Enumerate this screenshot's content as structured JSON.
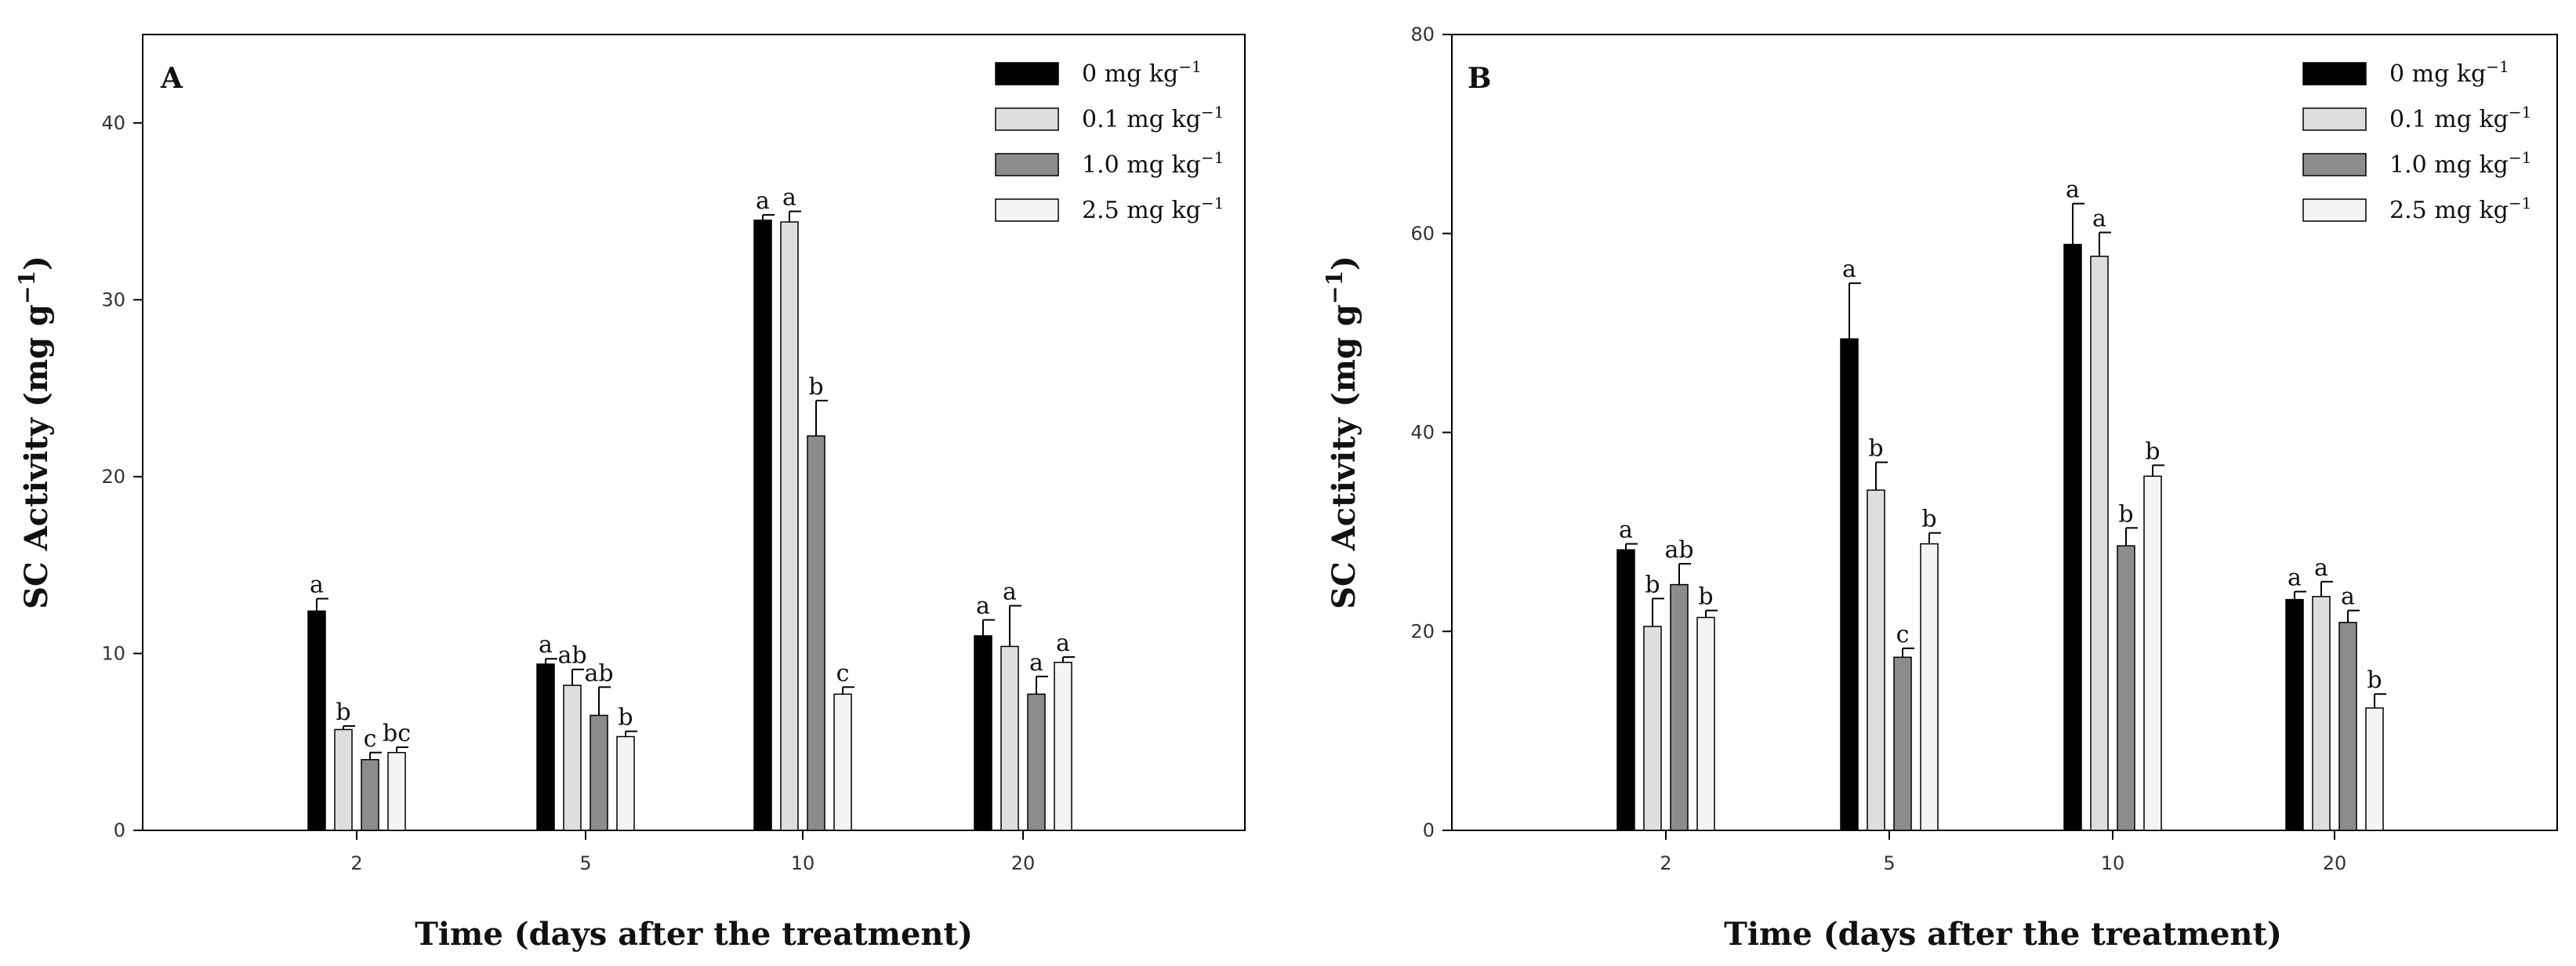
{
  "chart_data": [
    {
      "type": "bar",
      "panel": "A",
      "categories": [
        "2",
        "5",
        "10",
        "20"
      ],
      "series": [
        {
          "name": "0",
          "values": [
            12.4,
            9.4,
            34.5,
            11.0
          ],
          "errors": [
            0.7,
            0.3,
            0.3,
            0.9
          ],
          "letters": [
            "a",
            "a",
            "a",
            "a"
          ],
          "color": "#000000"
        },
        {
          "name": "0.1",
          "values": [
            5.7,
            8.2,
            34.4,
            10.4
          ],
          "errors": [
            0.2,
            0.9,
            0.6,
            2.3
          ],
          "letters": [
            "b",
            "ab",
            "a",
            "a"
          ],
          "color": "#dedede"
        },
        {
          "name": "1.0",
          "values": [
            4.0,
            6.5,
            22.3,
            7.7
          ],
          "errors": [
            0.4,
            1.6,
            2.0,
            1.0
          ],
          "letters": [
            "c",
            "ab",
            "b",
            "a"
          ],
          "color": "#8c8c8c"
        },
        {
          "name": "2.5",
          "values": [
            4.4,
            5.3,
            7.7,
            9.5
          ],
          "errors": [
            0.3,
            0.3,
            0.4,
            0.3
          ],
          "letters": [
            "bc",
            "b",
            "c",
            "a"
          ],
          "color": "#f4f4f4"
        }
      ],
      "ylim": [
        0,
        45
      ],
      "yticks": [
        0,
        10,
        20,
        30,
        40
      ],
      "xlabel": "Time (days after the treatment)",
      "ylabel": "SC Activity (mg g",
      "ylabel_sup": "−1",
      "ylabel_end": ")",
      "legend_unit": "mg kg",
      "legend_sup": "−1",
      "legend_position": "top-right"
    },
    {
      "type": "bar",
      "panel": "B",
      "categories": [
        "2",
        "5",
        "10",
        "20"
      ],
      "series": [
        {
          "name": "0",
          "values": [
            28.2,
            49.4,
            58.9,
            23.2
          ],
          "errors": [
            0.6,
            5.6,
            4.1,
            0.8
          ],
          "letters": [
            "a",
            "a",
            "a",
            "a"
          ],
          "color": "#000000"
        },
        {
          "name": "0.1",
          "values": [
            20.5,
            34.2,
            57.7,
            23.5
          ],
          "errors": [
            2.8,
            2.8,
            2.4,
            1.5
          ],
          "letters": [
            "b",
            "b",
            "a",
            "a"
          ],
          "color": "#dedede"
        },
        {
          "name": "1.0",
          "values": [
            24.7,
            17.4,
            28.6,
            20.9
          ],
          "errors": [
            2.1,
            0.9,
            1.8,
            1.2
          ],
          "letters": [
            "ab",
            "c",
            "b",
            "a"
          ],
          "color": "#8c8c8c"
        },
        {
          "name": "2.5",
          "values": [
            21.4,
            28.8,
            35.6,
            12.3
          ],
          "errors": [
            0.7,
            1.1,
            1.1,
            1.4
          ],
          "letters": [
            "b",
            "b",
            "b",
            "b"
          ],
          "color": "#f4f4f4"
        }
      ],
      "ylim": [
        0,
        80
      ],
      "yticks": [
        0,
        20,
        40,
        60,
        80
      ],
      "xlabel": "Time (days after the treatment)",
      "ylabel": "SC Activity (mg g",
      "ylabel_sup": "−1",
      "ylabel_end": ")",
      "legend_unit": "mg kg",
      "legend_sup": "−1",
      "legend_position": "top-right"
    }
  ]
}
